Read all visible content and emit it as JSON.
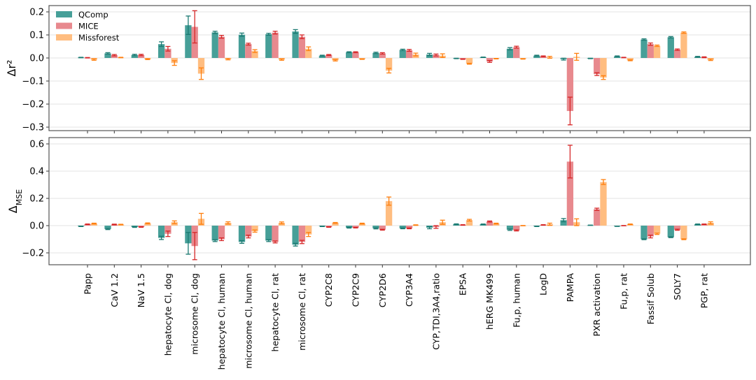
{
  "chart_data": [
    {
      "type": "bar",
      "ylabel": "Δr²",
      "ylim": [
        -0.31,
        0.22
      ],
      "yticks": [
        "0.2",
        "0.1",
        "0.0",
        "−0.1",
        "−0.2",
        "−0.3"
      ],
      "ytick_values": [
        0.2,
        0.1,
        0.0,
        -0.1,
        -0.2,
        -0.3
      ],
      "grid": true,
      "legend_placement": "top-left",
      "categories": [
        "Papp",
        "CaV 1.2",
        "NaV 1.5",
        "hepatocyte Cl, dog",
        "microsome Cl, dog",
        "hepatocyte Cl, human",
        "microsome Cl, human",
        "hepatocyte Cl, rat",
        "microsome Cl, rat",
        "CYP2C8",
        "CYP2C9",
        "CYP2D6",
        "CYP3A4",
        "CYP,TDI,3A4,ratio",
        "EPSA",
        "hERG MK499",
        "Fu,p, human",
        "LogD",
        "PAMPA",
        "PXR activation",
        "Fu,p, rat",
        "Fassif Solub",
        "SOLY7",
        "PGP, rat"
      ],
      "series": [
        {
          "name": "QComp",
          "color": "#469f98",
          "err_color": "#1b7a72",
          "values": [
            0.002,
            0.02,
            0.013,
            0.06,
            0.142,
            0.111,
            0.101,
            0.103,
            0.115,
            0.01,
            0.025,
            0.022,
            0.035,
            0.015,
            -0.002,
            0.003,
            0.04,
            0.01,
            -0.005,
            -0.002,
            0.007,
            0.08,
            0.09,
            0.005
          ],
          "errors": [
            0.001,
            0.003,
            0.003,
            0.01,
            0.04,
            0.005,
            0.007,
            0.004,
            0.008,
            0.002,
            0.002,
            0.003,
            0.003,
            0.005,
            0.001,
            0.001,
            0.005,
            0.002,
            0.004,
            0.001,
            0.002,
            0.003,
            0.003,
            0.002
          ]
        },
        {
          "name": "MICE",
          "color": "#e8898e",
          "err_color": "#d62728",
          "values": [
            0.001,
            0.012,
            0.013,
            0.04,
            0.135,
            0.092,
            0.06,
            0.11,
            0.092,
            0.013,
            0.025,
            0.02,
            0.033,
            0.013,
            -0.005,
            -0.015,
            0.047,
            0.007,
            -0.23,
            -0.07,
            0.002,
            0.06,
            0.036,
            0.003
          ],
          "errors": [
            0.001,
            0.003,
            0.003,
            0.01,
            0.07,
            0.006,
            0.004,
            0.006,
            0.008,
            0.002,
            0.002,
            0.003,
            0.004,
            0.004,
            0.001,
            0.004,
            0.004,
            0.002,
            0.06,
            0.006,
            0.001,
            0.005,
            0.003,
            0.002
          ]
        },
        {
          "name": "Missforest",
          "color": "#ffbd80",
          "err_color": "#ff7f0e",
          "values": [
            -0.007,
            0.002,
            -0.005,
            -0.022,
            -0.068,
            -0.005,
            0.03,
            -0.007,
            0.04,
            -0.01,
            -0.005,
            -0.055,
            0.015,
            0.01,
            -0.025,
            -0.003,
            -0.004,
            0.003,
            0.005,
            -0.085,
            -0.01,
            0.053,
            0.11,
            -0.008
          ],
          "errors": [
            0.003,
            0.001,
            0.002,
            0.01,
            0.025,
            0.003,
            0.006,
            0.003,
            0.008,
            0.003,
            0.001,
            0.01,
            0.006,
            0.008,
            0.002,
            0.001,
            0.001,
            0.004,
            0.015,
            0.008,
            0.002,
            0.003,
            0.003,
            0.003
          ]
        }
      ]
    },
    {
      "type": "bar",
      "ylabel": "Δ",
      "ylabel_sub": "MSE",
      "ylim": [
        -0.17,
        0.63
      ],
      "yticks": [
        "0.6",
        "0.4",
        "0.2",
        "0.0",
        "−0.2"
      ],
      "ytick_values": [
        0.6,
        0.4,
        0.2,
        0.0,
        -0.2
      ],
      "grid": true,
      "series": [
        {
          "name": "QComp",
          "values": [
            -0.005,
            -0.025,
            -0.01,
            -0.09,
            -0.13,
            -0.11,
            -0.12,
            -0.11,
            -0.14,
            -0.005,
            -0.015,
            -0.02,
            -0.02,
            -0.015,
            0.01,
            0.01,
            -0.03,
            -0.005,
            0.04,
            0.003,
            -0.005,
            -0.1,
            -0.085,
            0.01
          ],
          "errors": [
            0.002,
            0.004,
            0.003,
            0.012,
            0.08,
            0.007,
            0.01,
            0.007,
            0.01,
            0.002,
            0.003,
            0.004,
            0.003,
            0.008,
            0.003,
            0.002,
            0.005,
            0.002,
            0.012,
            0.001,
            0.001,
            0.003,
            0.003,
            0.002
          ]
        },
        {
          "name": "MICE",
          "values": [
            0.01,
            0.008,
            -0.01,
            -0.06,
            -0.15,
            -0.1,
            -0.08,
            -0.12,
            -0.12,
            -0.01,
            -0.015,
            -0.03,
            -0.02,
            -0.01,
            0.005,
            0.03,
            -0.035,
            0.005,
            0.47,
            0.12,
            0,
            -0.08,
            -0.03,
            0.01
          ],
          "errors": [
            0.002,
            0.003,
            0.002,
            0.02,
            0.1,
            0.01,
            0.01,
            0.007,
            0.012,
            0.002,
            0.002,
            0.003,
            0.003,
            0.01,
            0.002,
            0.004,
            0.004,
            0.002,
            0.12,
            0.008,
            0.001,
            0.01,
            0.004,
            0.002
          ]
        },
        {
          "name": "Missforest",
          "values": [
            0.015,
            0.008,
            0.017,
            0.025,
            0.05,
            0.02,
            -0.04,
            0.02,
            -0.065,
            0.02,
            0.015,
            0.18,
            0.004,
            0.025,
            0.04,
            0.015,
            0,
            0.01,
            0.025,
            0.32,
            0.01,
            -0.06,
            -0.1,
            0.02
          ],
          "errors": [
            0.003,
            0.002,
            0.003,
            0.01,
            0.04,
            0.008,
            0.008,
            0.007,
            0.015,
            0.003,
            0.003,
            0.03,
            0.002,
            0.015,
            0.006,
            0.003,
            0.001,
            0.008,
            0.025,
            0.018,
            0.002,
            0.005,
            0.003,
            0.008
          ]
        }
      ]
    }
  ]
}
